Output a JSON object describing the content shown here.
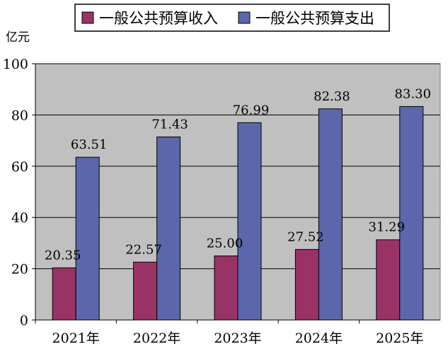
{
  "chart_data": {
    "type": "bar",
    "unit": "亿元",
    "categories": [
      "2021年",
      "2022年",
      "2023年",
      "2024年",
      "2025年"
    ],
    "series": [
      {
        "name": "一般公共预算收入",
        "values": [
          20.35,
          22.57,
          25.0,
          27.52,
          31.29
        ],
        "labels": [
          "20.35",
          "22.57",
          "25.00",
          "27.52",
          "31.29"
        ],
        "color": "#993366"
      },
      {
        "name": "一般公共预算支出",
        "values": [
          63.51,
          71.43,
          76.99,
          82.38,
          83.3
        ],
        "labels": [
          "63.51",
          "71.43",
          "76.99",
          "82.38",
          "83.30"
        ],
        "color": "#5B67AA"
      }
    ],
    "ylim": [
      0,
      100
    ],
    "yticks": [
      "0",
      "20",
      "40",
      "60",
      "80",
      "100"
    ],
    "plot_background": "#C0C0C0",
    "legend": "top"
  }
}
